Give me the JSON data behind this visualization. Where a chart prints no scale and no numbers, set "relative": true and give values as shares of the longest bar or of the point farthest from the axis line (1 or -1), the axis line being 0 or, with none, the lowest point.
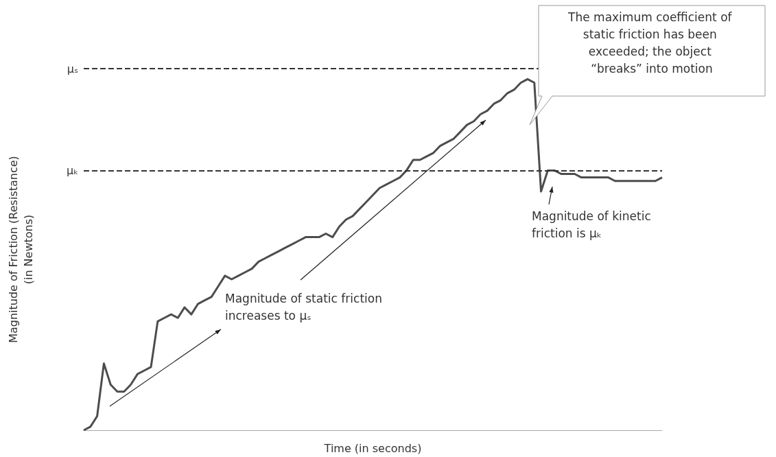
{
  "chart_data": {
    "type": "line",
    "relative": true,
    "xlabel": "Time (in seconds)",
    "ylabel": "Magnitude of Friction (Resistance)\n(in Newtons)",
    "categories": [
      null,
      null,
      null,
      null,
      null,
      null,
      null,
      null,
      null,
      null,
      null,
      null,
      null,
      null,
      null,
      null,
      null,
      null,
      null,
      null,
      null,
      null,
      null,
      null,
      null,
      null,
      null,
      null,
      null,
      null,
      null,
      null,
      null,
      null,
      null,
      null,
      null,
      null,
      null,
      null,
      null,
      null,
      null,
      null,
      null,
      null,
      null,
      null,
      null,
      null,
      null,
      null,
      null,
      null,
      null,
      null,
      null,
      null,
      null,
      null,
      null,
      null,
      null,
      null,
      null,
      null,
      null,
      null,
      null,
      null,
      null,
      null,
      null,
      null,
      null,
      null,
      null,
      null,
      null,
      null,
      null,
      null,
      null,
      null,
      null,
      null,
      null
    ],
    "series": [
      {
        "color": "#4d4d4d",
        "values": [
          0.0,
          0.01,
          0.04,
          0.19,
          0.13,
          0.11,
          0.11,
          0.13,
          0.16,
          0.17,
          0.18,
          0.31,
          0.32,
          0.33,
          0.32,
          0.35,
          0.33,
          0.36,
          0.37,
          0.38,
          0.41,
          0.44,
          0.43,
          0.44,
          0.45,
          0.46,
          0.48,
          0.49,
          0.5,
          0.51,
          0.52,
          0.53,
          0.54,
          0.55,
          0.55,
          0.55,
          0.56,
          0.55,
          0.58,
          0.6,
          0.61,
          0.63,
          0.65,
          0.67,
          0.69,
          0.7,
          0.71,
          0.72,
          0.74,
          0.77,
          0.77,
          0.78,
          0.79,
          0.81,
          0.82,
          0.83,
          0.85,
          0.87,
          0.88,
          0.9,
          0.91,
          0.93,
          0.94,
          0.96,
          0.97,
          0.99,
          1.0,
          0.99,
          0.68,
          0.74,
          0.74,
          0.73,
          0.73,
          0.73,
          0.72,
          0.72,
          0.72,
          0.72,
          0.72,
          0.71,
          0.71,
          0.71,
          0.71,
          0.71,
          0.71,
          0.71,
          0.72
        ]
      }
    ],
    "ref_lines": [
      {
        "axis": "y",
        "value": 1.03,
        "label": "μₛ",
        "color": "#333333",
        "line_style": "dashed"
      },
      {
        "axis": "y",
        "value": 0.74,
        "label": "μₖ",
        "color": "#333333",
        "line_style": "dashed"
      }
    ],
    "annotations": [
      "The maximum coefficient of static friction has been exceeded; the object “breaks” into motion",
      "Magnitude of kinetic friction is μₖ",
      "Magnitude of static friction increases to μₛ"
    ],
    "marker": "none",
    "line_style": "solid"
  }
}
